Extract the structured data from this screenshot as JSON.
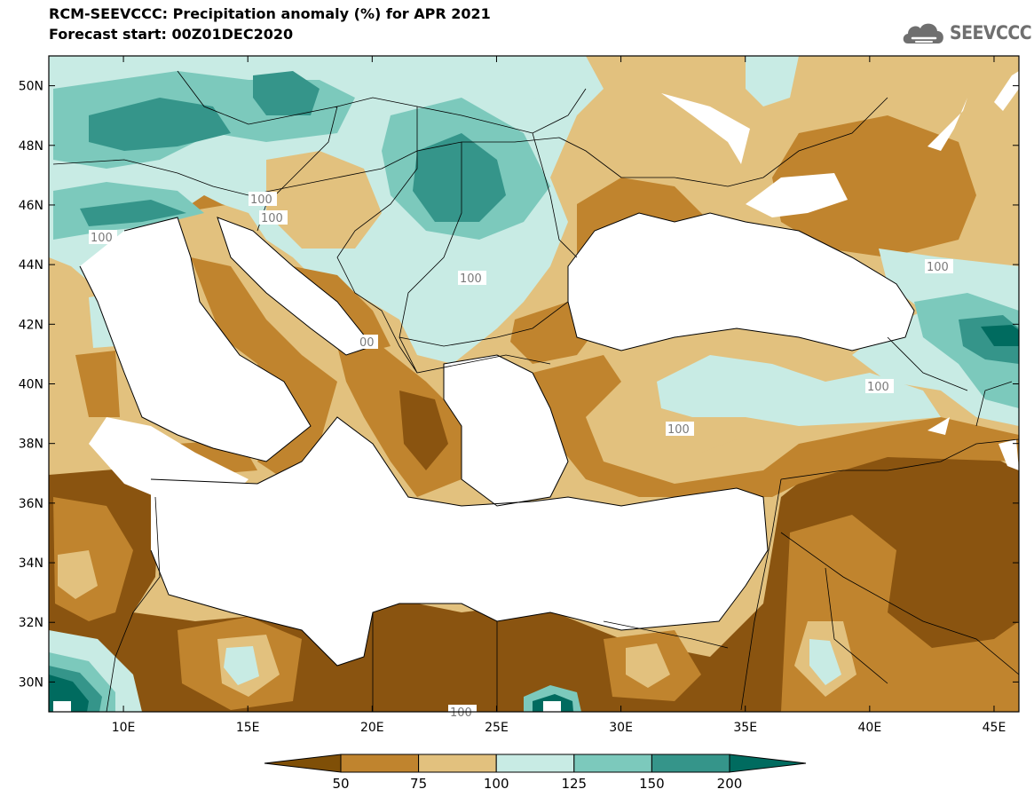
{
  "header": {
    "title": "RCM-SEEVCCC: Precipitation anomaly (%) for APR 2021",
    "subtitle": "Forecast start: 00Z01DEC2020"
  },
  "logo": {
    "text": "SEEVCCC",
    "icon": "cloud-icon"
  },
  "map": {
    "lon_range": [
      7,
      46
    ],
    "lat_range": [
      29,
      51
    ],
    "x_ticks": [
      "10E",
      "15E",
      "20E",
      "25E",
      "30E",
      "35E",
      "40E",
      "45E"
    ],
    "y_ticks": [
      "50N",
      "48N",
      "46N",
      "44N",
      "42N",
      "40N",
      "38N",
      "36N",
      "34N",
      "32N",
      "30N"
    ],
    "contour_labels": [
      "100",
      "100",
      "100",
      "100",
      "00",
      "100",
      "100",
      "100",
      "100"
    ]
  },
  "colorbar": {
    "levels": [
      "50",
      "75",
      "100",
      "125",
      "150",
      "200"
    ],
    "colors": [
      "#7f4f07",
      "#c0842e",
      "#e2c17e",
      "#c8ebe4",
      "#7cc9bc",
      "#35958a",
      "#006b5f"
    ]
  },
  "colors": {
    "dry_strong": "#8a5410",
    "dry": "#c0842e",
    "dry_light": "#e2c17e",
    "wet_light": "#c8ebe4",
    "wet": "#7cc9bc",
    "wet_strong": "#35958a",
    "wet_extreme": "#006b5f",
    "sea": "#ffffff"
  }
}
